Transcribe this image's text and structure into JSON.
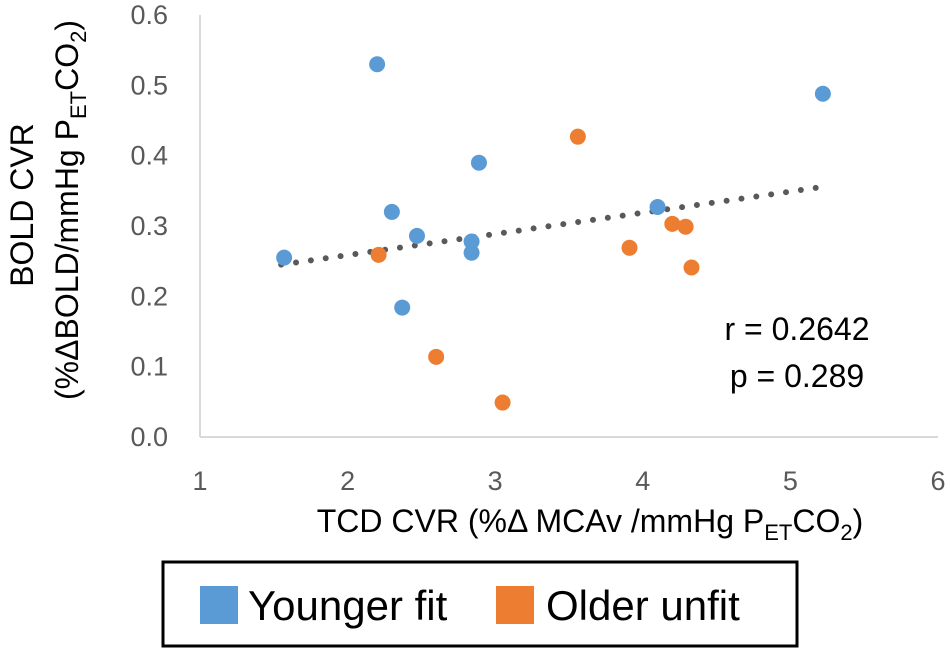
{
  "chart_data": {
    "type": "scatter",
    "xlim": [
      1,
      6
    ],
    "ylim": [
      0.0,
      0.6
    ],
    "x_ticks": [
      "1",
      "2",
      "3",
      "4",
      "5",
      "6"
    ],
    "y_ticks": [
      "0.0",
      "0.1",
      "0.2",
      "0.3",
      "0.4",
      "0.5",
      "0.6"
    ],
    "xlabel": {
      "main": "TCD CVR (%Δ MCAv /mmHg P",
      "sub": "ET",
      "after": "CO",
      "sub2": "2",
      "close": ")"
    },
    "ylabel": {
      "line1": "BOLD CVR",
      "line2_main": "(%ΔBOLD/mmHg P",
      "line2_sub": "ET",
      "line2_after": "CO",
      "line2_sub2": "2",
      "line2_close": ")"
    },
    "grid": false,
    "trendline": {
      "style": "dotted",
      "color": "#595959",
      "from": [
        1.55,
        0.245
      ],
      "to": [
        5.2,
        0.355
      ]
    },
    "annotations": {
      "r": "r = 0.2642",
      "p": "p = 0.289"
    },
    "series": [
      {
        "name": "Younger fit",
        "color": "#5B9BD5",
        "points": [
          {
            "x": 1.57,
            "y": 0.255
          },
          {
            "x": 2.2,
            "y": 0.53
          },
          {
            "x": 2.3,
            "y": 0.32
          },
          {
            "x": 2.37,
            "y": 0.184
          },
          {
            "x": 2.47,
            "y": 0.286
          },
          {
            "x": 2.84,
            "y": 0.278
          },
          {
            "x": 2.84,
            "y": 0.262
          },
          {
            "x": 2.89,
            "y": 0.39
          },
          {
            "x": 4.1,
            "y": 0.327
          },
          {
            "x": 5.22,
            "y": 0.488
          }
        ]
      },
      {
        "name": "Older unfit",
        "color": "#ED7D31",
        "points": [
          {
            "x": 2.21,
            "y": 0.259
          },
          {
            "x": 2.6,
            "y": 0.114
          },
          {
            "x": 3.05,
            "y": 0.049
          },
          {
            "x": 3.56,
            "y": 0.427
          },
          {
            "x": 3.91,
            "y": 0.269
          },
          {
            "x": 4.2,
            "y": 0.303
          },
          {
            "x": 4.29,
            "y": 0.299
          },
          {
            "x": 4.33,
            "y": 0.241
          }
        ]
      }
    ],
    "legend": {
      "placement": "bottom",
      "items": [
        "Younger fit",
        "Older unfit"
      ]
    }
  }
}
